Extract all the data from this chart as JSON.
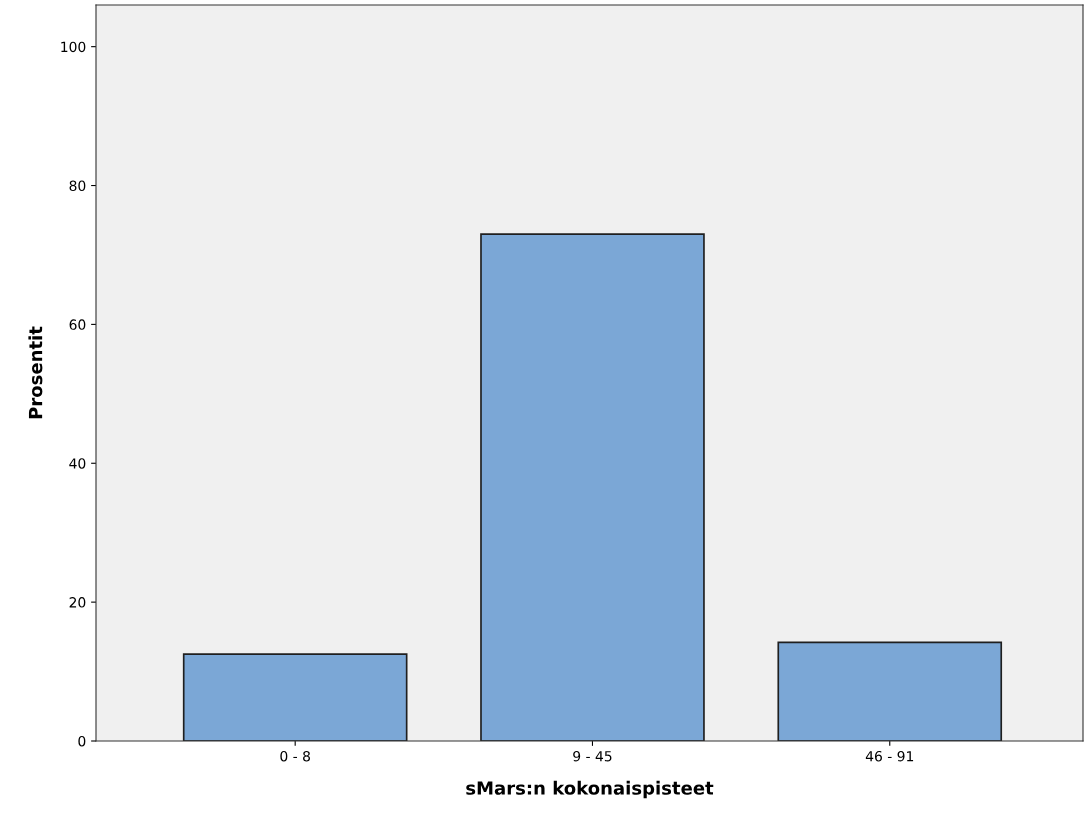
{
  "chart_data": {
    "type": "bar",
    "xlabel": "sMars:n kokonaispisteet",
    "ylabel": "Prosentit",
    "categories": [
      "0 - 8",
      "9 - 45",
      "46 - 91"
    ],
    "values": [
      12.5,
      73.0,
      14.2
    ],
    "color": "#7ba7d6",
    "ylim": [
      0,
      106
    ],
    "yticks": [
      0,
      20,
      40,
      60,
      80,
      100
    ],
    "grid": false
  }
}
